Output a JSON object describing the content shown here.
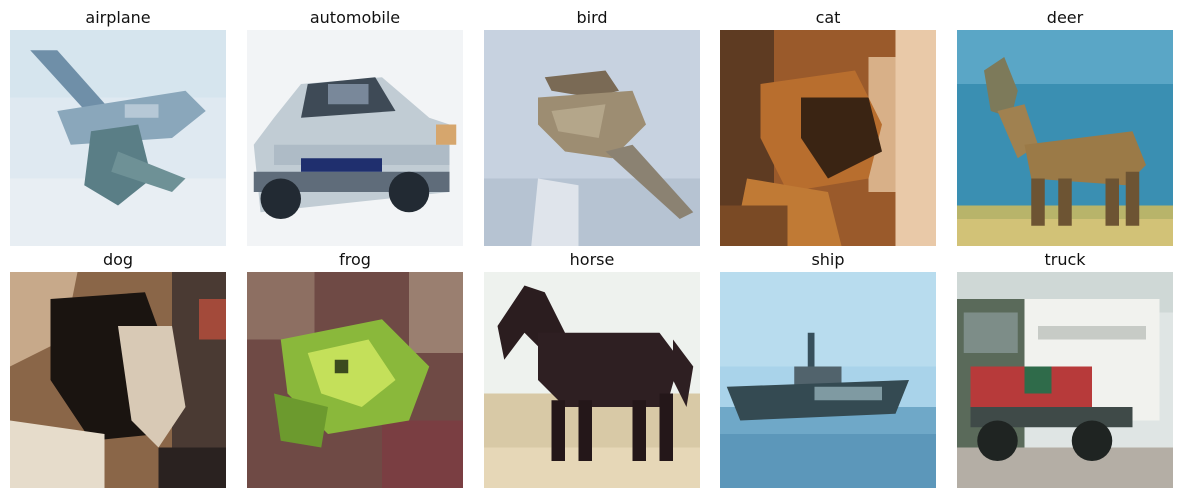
{
  "classes": [
    {
      "label": "airplane",
      "subject": "airplane-image"
    },
    {
      "label": "automobile",
      "subject": "automobile-image"
    },
    {
      "label": "bird",
      "subject": "bird-image"
    },
    {
      "label": "cat",
      "subject": "cat-image"
    },
    {
      "label": "deer",
      "subject": "deer-image"
    },
    {
      "label": "dog",
      "subject": "dog-image"
    },
    {
      "label": "frog",
      "subject": "frog-image"
    },
    {
      "label": "horse",
      "subject": "horse-image"
    },
    {
      "label": "ship",
      "subject": "ship-image"
    },
    {
      "label": "truck",
      "subject": "truck-image"
    }
  ]
}
